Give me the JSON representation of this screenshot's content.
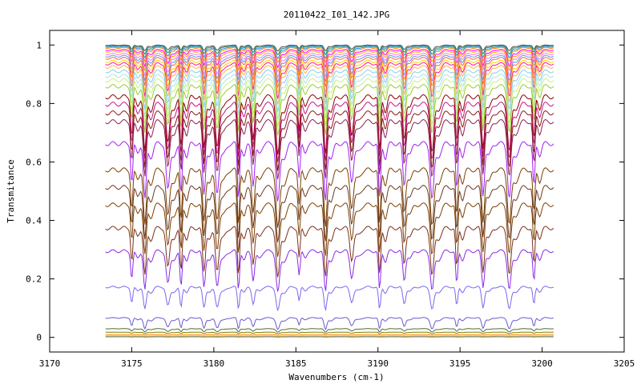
{
  "chart_data": {
    "type": "line",
    "title": "20110422_I01_142.JPG",
    "xlabel": "Wavenumbers (cm-1)",
    "ylabel": "Transmitance",
    "xlim": [
      3170,
      3205
    ],
    "ylim": [
      -0.05,
      1.05
    ],
    "x_ticks": [
      3170,
      3175,
      3180,
      3185,
      3190,
      3195,
      3200,
      3205
    ],
    "y_ticks": [
      0,
      0.2,
      0.4,
      0.6,
      0.8,
      1
    ],
    "x_tick_labels": [
      "3170",
      "3175",
      "3180",
      "3185",
      "3190",
      "3195",
      "3200",
      "3205"
    ],
    "y_tick_labels": [
      "0",
      "0.2",
      "0.4",
      "0.6",
      "0.8",
      "1"
    ],
    "x_range": [
      3173.4,
      3200.7
    ],
    "absorption_lines": [
      3175.0,
      3175.8,
      3177.2,
      3178.0,
      3179.4,
      3180.2,
      3181.5,
      3182.4,
      3183.9,
      3185.2,
      3186.8,
      3188.4,
      3190.1,
      3191.6,
      3193.3,
      3194.8,
      3196.4,
      3198.0,
      3199.5
    ],
    "series": [
      {
        "baseline": 1.0,
        "depth": 0.02,
        "color": "#555555"
      },
      {
        "baseline": 0.998,
        "depth": 0.03,
        "color": "#2e8b57"
      },
      {
        "baseline": 0.995,
        "depth": 0.04,
        "color": "#1e90ff"
      },
      {
        "baseline": 0.992,
        "depth": 0.05,
        "color": "#ff8c00"
      },
      {
        "baseline": 0.985,
        "depth": 0.06,
        "color": "#ff00ff"
      },
      {
        "baseline": 0.98,
        "depth": 0.07,
        "color": "#ffa500"
      },
      {
        "baseline": 0.972,
        "depth": 0.08,
        "color": "#ee82ee"
      },
      {
        "baseline": 0.965,
        "depth": 0.09,
        "color": "#6495ed"
      },
      {
        "baseline": 0.958,
        "depth": 0.1,
        "color": "#ff6347"
      },
      {
        "baseline": 0.948,
        "depth": 0.11,
        "color": "#ffd700"
      },
      {
        "baseline": 0.94,
        "depth": 0.12,
        "color": "#ff1493"
      },
      {
        "baseline": 0.93,
        "depth": 0.13,
        "color": "#ffb347"
      },
      {
        "baseline": 0.915,
        "depth": 0.14,
        "color": "#87ceeb"
      },
      {
        "baseline": 0.9,
        "depth": 0.15,
        "color": "#b0e0e6"
      },
      {
        "baseline": 0.885,
        "depth": 0.16,
        "color": "#c8f07a"
      },
      {
        "baseline": 0.865,
        "depth": 0.17,
        "color": "#9acd32"
      },
      {
        "baseline": 0.83,
        "depth": 0.2,
        "color": "#8b0000"
      },
      {
        "baseline": 0.805,
        "depth": 0.2,
        "color": "#c71585"
      },
      {
        "baseline": 0.775,
        "depth": 0.2,
        "color": "#8b1a1a"
      },
      {
        "baseline": 0.745,
        "depth": 0.2,
        "color": "#8b2252"
      },
      {
        "baseline": 0.67,
        "depth": 0.2,
        "color": "#a020f0"
      },
      {
        "baseline": 0.58,
        "depth": 0.2,
        "color": "#7b3f00"
      },
      {
        "baseline": 0.52,
        "depth": 0.19,
        "color": "#6b3a1f"
      },
      {
        "baseline": 0.46,
        "depth": 0.18,
        "color": "#7b3f00"
      },
      {
        "baseline": 0.38,
        "depth": 0.17,
        "color": "#7b2f1a"
      },
      {
        "baseline": 0.3,
        "depth": 0.14,
        "color": "#8a2be2"
      },
      {
        "baseline": 0.175,
        "depth": 0.08,
        "color": "#7b68ee"
      },
      {
        "baseline": 0.068,
        "depth": 0.04,
        "color": "#6a5acd"
      },
      {
        "baseline": 0.03,
        "depth": 0.012,
        "color": "#556b2f"
      },
      {
        "baseline": 0.018,
        "depth": 0.006,
        "color": "#808000"
      },
      {
        "baseline": 0.01,
        "depth": 0.003,
        "color": "#ff8c00"
      },
      {
        "baseline": 0.005,
        "depth": 0.002,
        "color": "#ffa500"
      },
      {
        "baseline": 0.002,
        "depth": 0.001,
        "color": "#4682b4"
      }
    ],
    "grid": false,
    "legend": "none"
  }
}
